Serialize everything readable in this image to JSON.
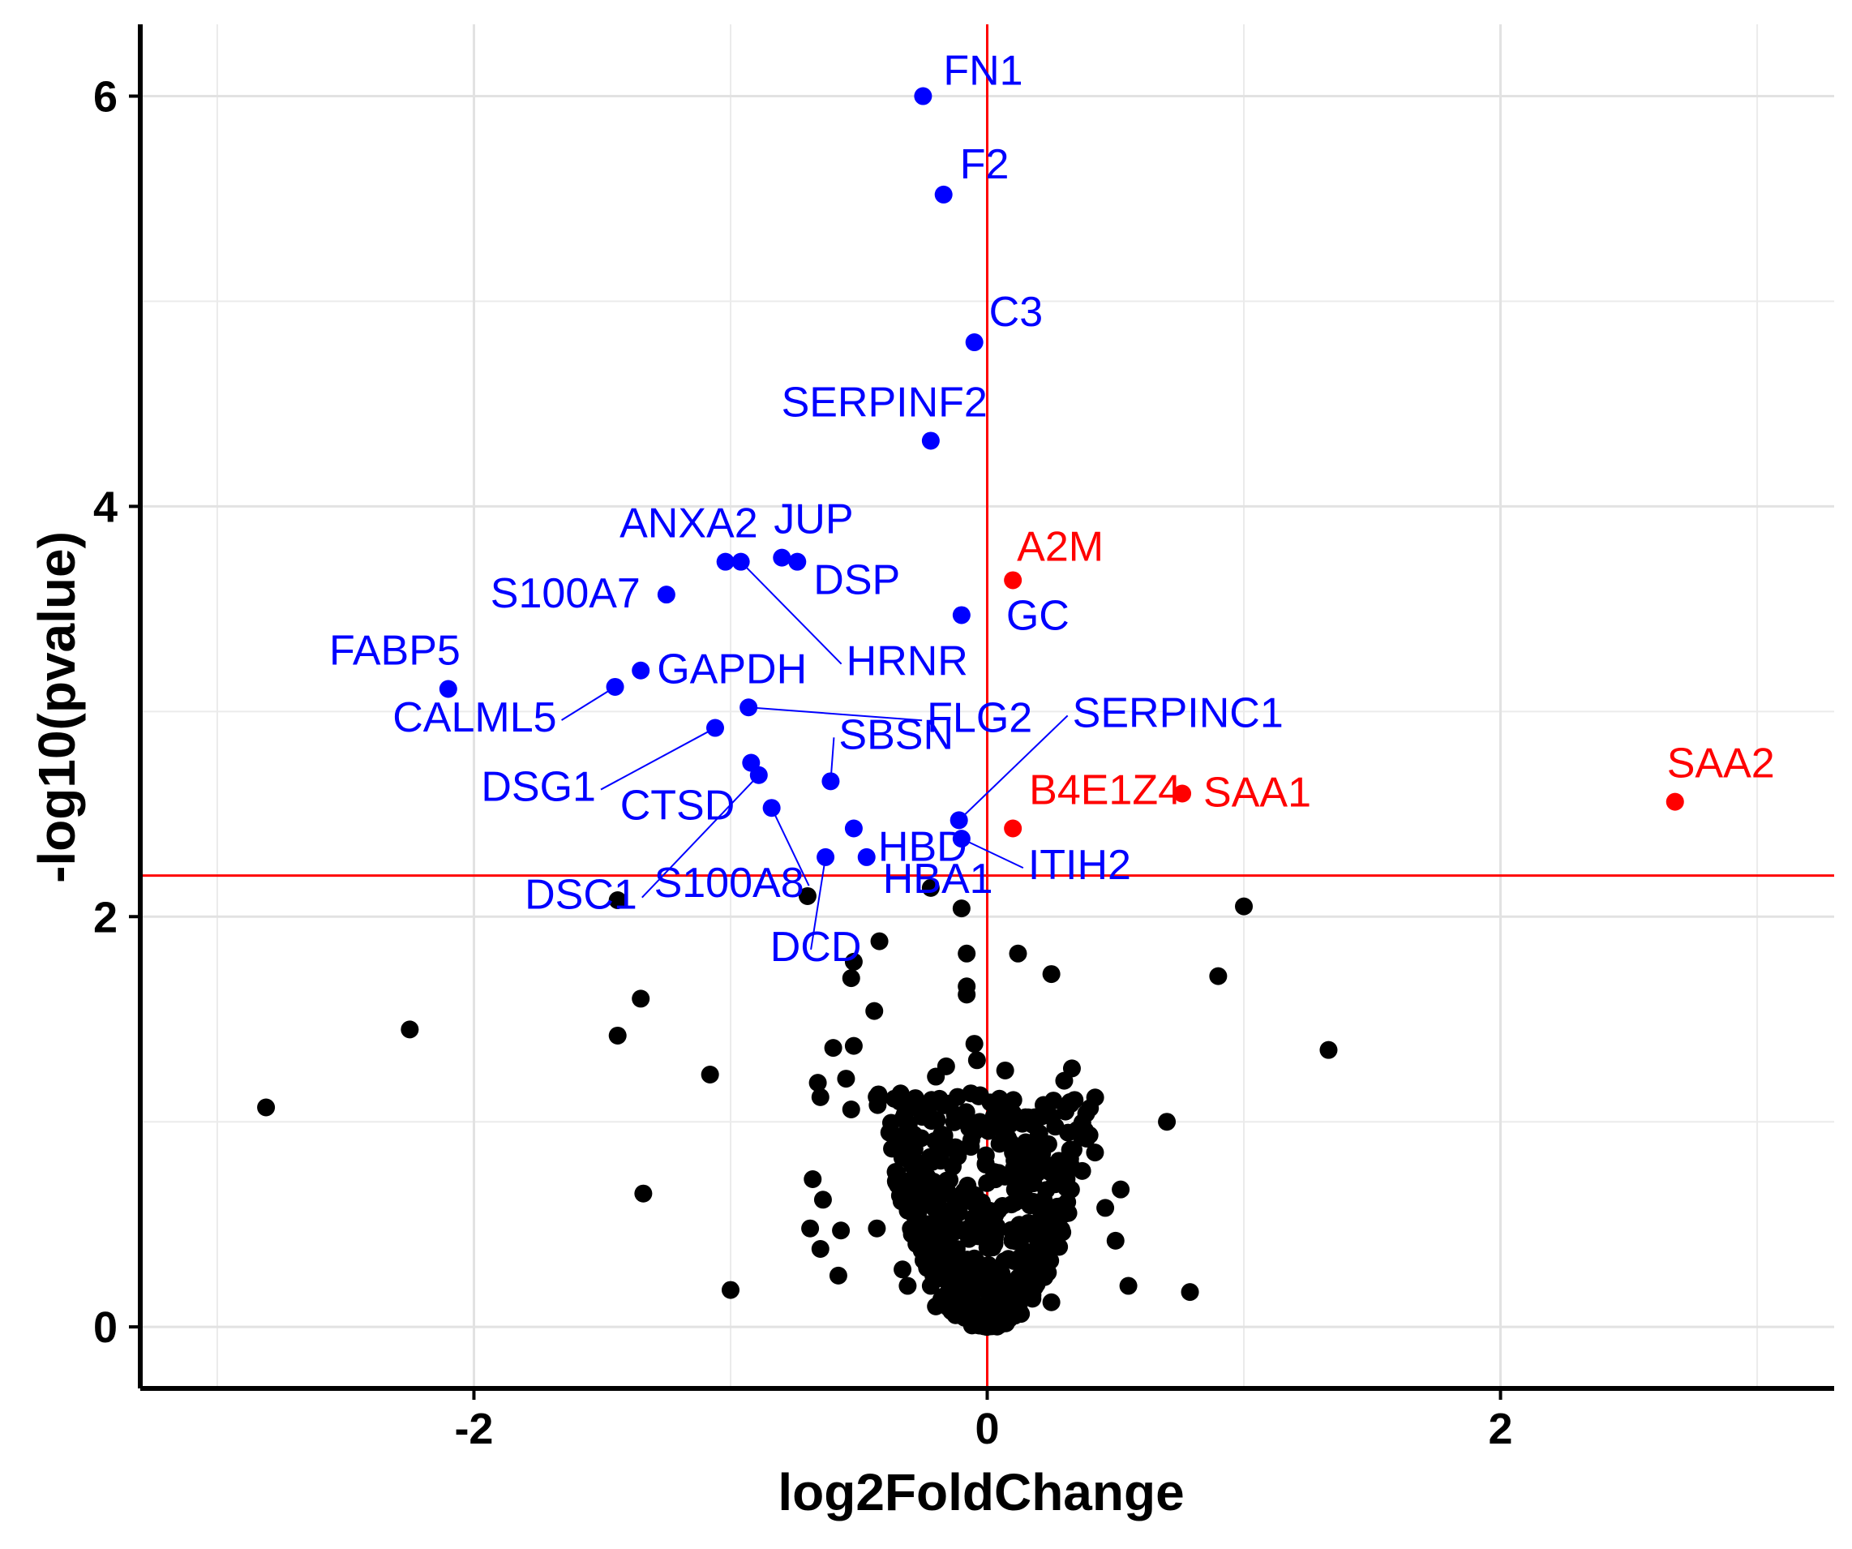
{
  "chart_data": {
    "type": "scatter",
    "title": "",
    "xlabel": "log2FoldChange",
    "ylabel": "-log10(pvalue)",
    "xlim": [
      -3.3,
      3.3
    ],
    "ylim": [
      -0.3,
      6.35
    ],
    "xticks": [
      -2,
      0,
      2
    ],
    "yticks": [
      0,
      2,
      4,
      6
    ],
    "grid": true,
    "thresholds": {
      "x": 0,
      "y": 2.2,
      "color": "#ff0000"
    },
    "colors": {
      "down": "#0000ff",
      "up": "#ff0000",
      "ns": "#000000"
    },
    "labeled_points": [
      {
        "label": "FN1",
        "x": -0.25,
        "y": 6.0,
        "group": "down"
      },
      {
        "label": "F2",
        "x": -0.17,
        "y": 5.52,
        "group": "down"
      },
      {
        "label": "C3",
        "x": -0.05,
        "y": 4.8,
        "group": "down"
      },
      {
        "label": "SERPINF2",
        "x": -0.22,
        "y": 4.32,
        "group": "down"
      },
      {
        "label": "ANXA2",
        "x": -1.02,
        "y": 3.73,
        "group": "down"
      },
      {
        "label": "HRNR",
        "x": -0.96,
        "y": 3.73,
        "group": "down"
      },
      {
        "label": "JUP",
        "x": -0.8,
        "y": 3.75,
        "group": "down"
      },
      {
        "label": "DSP",
        "x": -0.74,
        "y": 3.73,
        "group": "down"
      },
      {
        "label": "S100A7",
        "x": -1.25,
        "y": 3.57,
        "group": "down"
      },
      {
        "label": "GC",
        "x": -0.1,
        "y": 3.47,
        "group": "down"
      },
      {
        "label": "GAPDH",
        "x": -1.35,
        "y": 3.2,
        "group": "down"
      },
      {
        "label": "FABP5",
        "x": -2.1,
        "y": 3.11,
        "group": "down"
      },
      {
        "label": "CALML5",
        "x": -1.45,
        "y": 3.12,
        "group": "down"
      },
      {
        "label": "FLG2",
        "x": -0.93,
        "y": 3.02,
        "group": "down"
      },
      {
        "label": "DSG1",
        "x": -1.06,
        "y": 2.92,
        "group": "down"
      },
      {
        "label": "CTSD",
        "x": -0.92,
        "y": 2.75,
        "group": "down"
      },
      {
        "label": "DSC1",
        "x": -0.89,
        "y": 2.69,
        "group": "down"
      },
      {
        "label": "SBSN",
        "x": -0.61,
        "y": 2.66,
        "group": "down"
      },
      {
        "label": "S100A8",
        "x": -0.84,
        "y": 2.53,
        "group": "down"
      },
      {
        "label": "HBD",
        "x": -0.52,
        "y": 2.43,
        "group": "down"
      },
      {
        "label": "SERPINC1",
        "x": -0.11,
        "y": 2.47,
        "group": "down"
      },
      {
        "label": "ITIH2",
        "x": -0.1,
        "y": 2.38,
        "group": "down"
      },
      {
        "label": "DCD",
        "x": -0.63,
        "y": 2.29,
        "group": "down"
      },
      {
        "label": "HBA1",
        "x": -0.47,
        "y": 2.29,
        "group": "down"
      },
      {
        "label": "A2M",
        "x": 0.1,
        "y": 3.64,
        "group": "up"
      },
      {
        "label": "SAA1",
        "x": 0.76,
        "y": 2.6,
        "group": "up"
      },
      {
        "label": "B4E1Z4",
        "x": 0.1,
        "y": 2.43,
        "group": "up"
      },
      {
        "label": "SAA2",
        "x": 2.68,
        "y": 2.56,
        "group": "up"
      }
    ],
    "background_points": [
      [
        -2.81,
        1.07
      ],
      [
        -2.25,
        1.45
      ],
      [
        -1.44,
        1.42
      ],
      [
        -1.35,
        1.6
      ],
      [
        -1.34,
        0.65
      ],
      [
        -1.44,
        2.08
      ],
      [
        -1.08,
        1.23
      ],
      [
        -1.0,
        0.18
      ],
      [
        -0.7,
        2.1
      ],
      [
        -0.68,
        0.72
      ],
      [
        -0.64,
        0.62
      ],
      [
        -0.65,
        1.12
      ],
      [
        -0.66,
        1.19
      ],
      [
        -0.69,
        0.48
      ],
      [
        -0.65,
        0.38
      ],
      [
        -0.6,
        1.36
      ],
      [
        -0.58,
        0.25
      ],
      [
        -0.57,
        0.47
      ],
      [
        -0.55,
        1.21
      ],
      [
        -0.53,
        1.06
      ],
      [
        -0.52,
        1.37
      ],
      [
        -0.52,
        1.78
      ],
      [
        -0.53,
        1.7
      ],
      [
        -0.42,
        1.88
      ],
      [
        -0.43,
        0.48
      ],
      [
        -0.44,
        1.54
      ],
      [
        -0.35,
        0.92
      ],
      [
        -0.33,
        0.28
      ],
      [
        -0.34,
        0.64
      ],
      [
        -0.31,
        0.2
      ],
      [
        -0.3,
        0.9
      ],
      [
        -0.3,
        0.62
      ],
      [
        -0.27,
        0.55
      ],
      [
        -0.25,
        0.43
      ],
      [
        -0.22,
        2.14
      ],
      [
        -0.22,
        0.2
      ],
      [
        -0.2,
        1.22
      ],
      [
        -0.16,
        1.27
      ],
      [
        -0.1,
        2.04
      ],
      [
        -0.08,
        1.82
      ],
      [
        -0.08,
        1.66
      ],
      [
        -0.08,
        1.62
      ],
      [
        -0.05,
        1.38
      ],
      [
        -0.04,
        1.3
      ],
      [
        0.07,
        1.25
      ],
      [
        0.12,
        1.82
      ],
      [
        0.25,
        1.72
      ],
      [
        0.3,
        1.2
      ],
      [
        0.33,
        1.26
      ],
      [
        0.35,
        0.96
      ],
      [
        0.42,
        0.85
      ],
      [
        0.46,
        0.58
      ],
      [
        0.5,
        0.42
      ],
      [
        0.52,
        0.67
      ],
      [
        0.55,
        0.2
      ],
      [
        0.7,
        1.0
      ],
      [
        0.79,
        0.17
      ],
      [
        0.9,
        1.71
      ],
      [
        1.0,
        2.05
      ],
      [
        1.33,
        1.35
      ],
      [
        0.25,
        0.12
      ],
      [
        0.12,
        0.47
      ],
      [
        0.2,
        0.31
      ],
      [
        0.28,
        0.39
      ],
      [
        0.37,
        0.76
      ],
      [
        0.22,
        0.62
      ],
      [
        0.15,
        0.9
      ],
      [
        -0.15,
        0.65
      ],
      [
        -0.2,
        0.1
      ],
      [
        0.05,
        0.98
      ],
      [
        0.1,
        0.85
      ],
      [
        -0.05,
        0.95
      ],
      [
        0.18,
        0.7
      ],
      [
        -0.12,
        0.3
      ],
      [
        0.3,
        0.55
      ]
    ],
    "cluster": {
      "center_x": 0,
      "half_width": 0.42,
      "y_min": 0.0,
      "y_max": 1.15
    }
  }
}
